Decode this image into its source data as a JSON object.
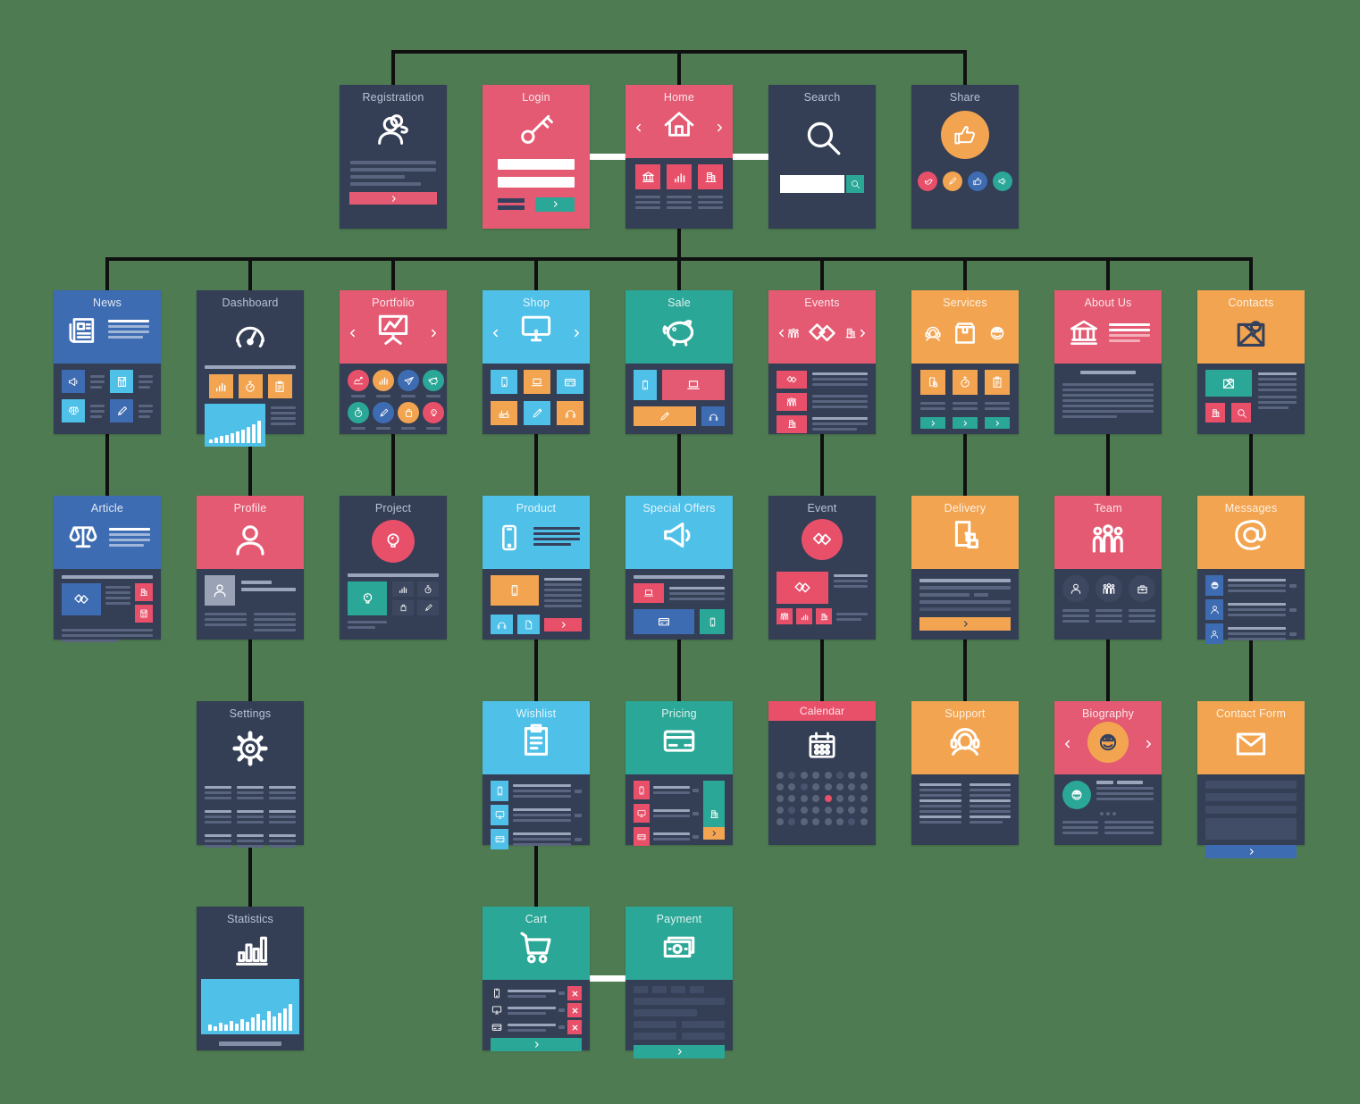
{
  "background_color": "#4e7b51",
  "palette": {
    "card_navy": "#343e55",
    "red": "#e45a72",
    "red_alt": "#e8506a",
    "teal": "#2aa797",
    "orange": "#f2a450",
    "blue": "#3e6cb2",
    "light_blue": "#4fc0e8",
    "connector_black": "#101010",
    "connector_white": "#ffffff",
    "white": "#ffffff"
  },
  "nodes": {
    "registration": {
      "title": "Registration",
      "icon": "add-user-icon",
      "color": "navy"
    },
    "login": {
      "title": "Login",
      "icon": "key-icon",
      "color": "red"
    },
    "home": {
      "title": "Home",
      "icon": "home-icon",
      "color": "red"
    },
    "search": {
      "title": "Search",
      "icon": "search-icon",
      "color": "navy"
    },
    "share": {
      "title": "Share",
      "icon": "thumb-up-icon",
      "color": "navy"
    },
    "news": {
      "title": "News",
      "icon": "newspaper-icon",
      "color": "blue"
    },
    "dashboard": {
      "title": "Dashboard",
      "icon": "speedometer-icon",
      "color": "navy"
    },
    "portfolio": {
      "title": "Portfolio",
      "icon": "presentation-icon",
      "color": "red"
    },
    "shop": {
      "title": "Shop",
      "icon": "monitor-icon",
      "color": "light_blue"
    },
    "sale": {
      "title": "Sale",
      "icon": "piggy-bank-icon",
      "color": "teal"
    },
    "events": {
      "title": "Events",
      "icon": "handshake-icon",
      "color": "red"
    },
    "services": {
      "title": "Services",
      "icon": "box-icon",
      "color": "orange"
    },
    "about_us": {
      "title": "About Us",
      "icon": "bank-icon",
      "color": "red"
    },
    "contacts": {
      "title": "Contacts",
      "icon": "map-icon",
      "color": "orange"
    },
    "article": {
      "title": "Article",
      "icon": "scales-icon",
      "color": "blue"
    },
    "profile": {
      "title": "Profile",
      "icon": "person-icon",
      "color": "red"
    },
    "project": {
      "title": "Project",
      "icon": "bulb-icon",
      "color": "navy"
    },
    "product": {
      "title": "Product",
      "icon": "phone-icon",
      "color": "light_blue"
    },
    "special_offers": {
      "title": "Special Offers",
      "icon": "megaphone-icon",
      "color": "light_blue"
    },
    "event": {
      "title": "Event",
      "icon": "handshake-icon",
      "color": "navy"
    },
    "delivery": {
      "title": "Delivery",
      "icon": "door-box-icon",
      "color": "orange"
    },
    "team": {
      "title": "Team",
      "icon": "people-icon",
      "color": "red"
    },
    "messages": {
      "title": "Messages",
      "icon": "at-sign-icon",
      "color": "orange"
    },
    "settings": {
      "title": "Settings",
      "icon": "gear-icon",
      "color": "navy"
    },
    "wishlist": {
      "title": "Wishlist",
      "icon": "clipboard-icon",
      "color": "light_blue"
    },
    "pricing": {
      "title": "Pricing",
      "icon": "credit-card-icon",
      "color": "teal"
    },
    "calendar": {
      "title": "Calendar",
      "icon": "calendar-icon",
      "color": "navy"
    },
    "support": {
      "title": "Support",
      "icon": "headset-icon",
      "color": "orange"
    },
    "biography": {
      "title": "Biography",
      "icon": "person-cap-icon",
      "color": "red"
    },
    "contact_form": {
      "title": "Contact Form",
      "icon": "envelope-icon",
      "color": "orange"
    },
    "statistics": {
      "title": "Statistics",
      "icon": "bar-chart-icon",
      "color": "navy"
    },
    "cart": {
      "title": "Cart",
      "icon": "cart-icon",
      "color": "teal"
    },
    "payment": {
      "title": "Payment",
      "icon": "banknote-icon",
      "color": "teal"
    }
  },
  "edges": [
    {
      "from": "top-bus",
      "to": "registration"
    },
    {
      "from": "top-bus",
      "to": "home"
    },
    {
      "from": "top-bus",
      "to": "share"
    },
    {
      "from": "login",
      "to": "home",
      "type": "peer"
    },
    {
      "from": "home",
      "to": "search",
      "type": "peer"
    },
    {
      "from": "home",
      "to": "news"
    },
    {
      "from": "home",
      "to": "dashboard"
    },
    {
      "from": "home",
      "to": "portfolio"
    },
    {
      "from": "home",
      "to": "shop"
    },
    {
      "from": "home",
      "to": "sale"
    },
    {
      "from": "home",
      "to": "events"
    },
    {
      "from": "home",
      "to": "services"
    },
    {
      "from": "home",
      "to": "about_us"
    },
    {
      "from": "home",
      "to": "contacts"
    },
    {
      "from": "news",
      "to": "article"
    },
    {
      "from": "dashboard",
      "to": "profile"
    },
    {
      "from": "portfolio",
      "to": "project"
    },
    {
      "from": "shop",
      "to": "product"
    },
    {
      "from": "sale",
      "to": "special_offers"
    },
    {
      "from": "events",
      "to": "event"
    },
    {
      "from": "services",
      "to": "delivery"
    },
    {
      "from": "about_us",
      "to": "team"
    },
    {
      "from": "contacts",
      "to": "messages"
    },
    {
      "from": "profile",
      "to": "settings"
    },
    {
      "from": "product",
      "to": "wishlist"
    },
    {
      "from": "special_offers",
      "to": "pricing"
    },
    {
      "from": "event",
      "to": "calendar"
    },
    {
      "from": "delivery",
      "to": "support"
    },
    {
      "from": "team",
      "to": "biography"
    },
    {
      "from": "messages",
      "to": "contact_form"
    },
    {
      "from": "settings",
      "to": "statistics"
    },
    {
      "from": "wishlist",
      "to": "cart"
    },
    {
      "from": "cart",
      "to": "payment",
      "type": "peer"
    }
  ]
}
